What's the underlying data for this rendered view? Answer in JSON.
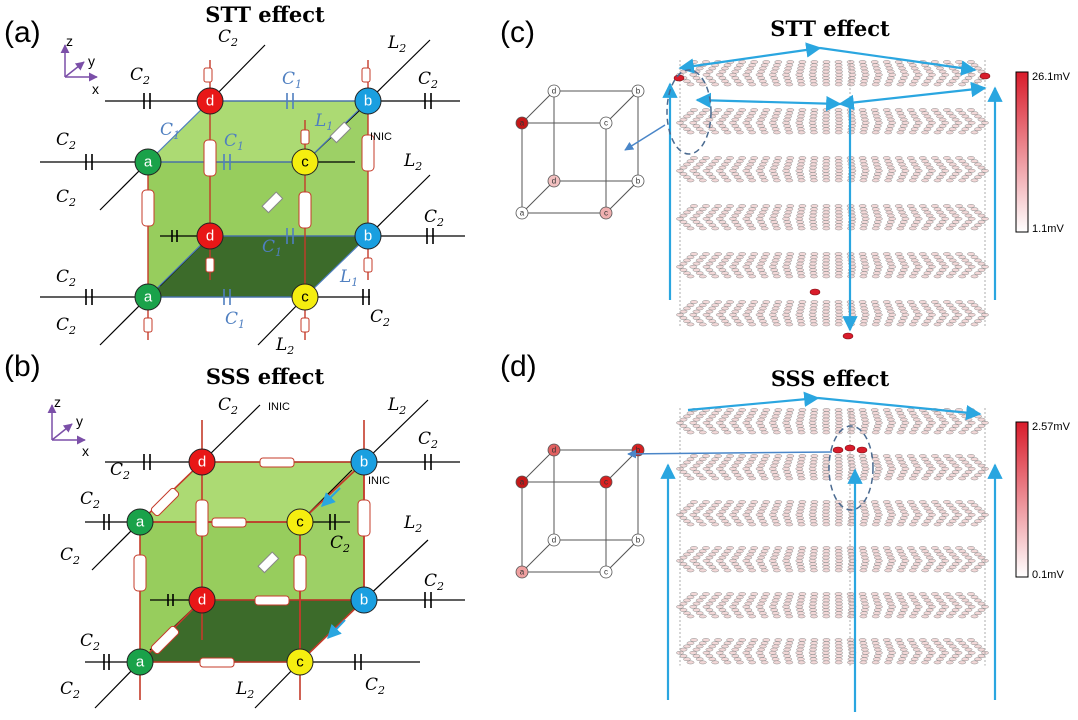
{
  "panels": {
    "a": {
      "label": "(a)",
      "title": "STT effect"
    },
    "b": {
      "label": "(b)",
      "title": "SSS effect"
    },
    "c": {
      "label": "(c)",
      "title": "STT effect",
      "colorbar": {
        "max": "26.1mV",
        "min": "1.1mV",
        "color": "#d91c2b"
      }
    },
    "d": {
      "label": "(d)",
      "title": "SSS effect",
      "colorbar": {
        "max": "2.57mV",
        "min": "0.1mV",
        "color": "#d91c2b"
      }
    }
  },
  "axes": {
    "z": "z",
    "y": "y",
    "x": "x"
  },
  "nodes": {
    "a": "a",
    "b": "b",
    "c": "c",
    "d": "d"
  },
  "node_colors": {
    "a": "#1aa24a",
    "b": "#1a9fe0",
    "c": "#f5ee10",
    "d": "#e81717"
  },
  "component_labels": {
    "C1": "C",
    "C2": "C",
    "L1": "L",
    "L2": "L",
    "sub1": "1",
    "sub2": "2",
    "inic": "INIC"
  },
  "colors": {
    "cube_light": "#8cc84b",
    "cube_dark": "#3c6b2a",
    "bond_red": "#c43b2a",
    "arrow_blue": "#2aa6e0",
    "lattice_gray": "#7a7a7a"
  }
}
